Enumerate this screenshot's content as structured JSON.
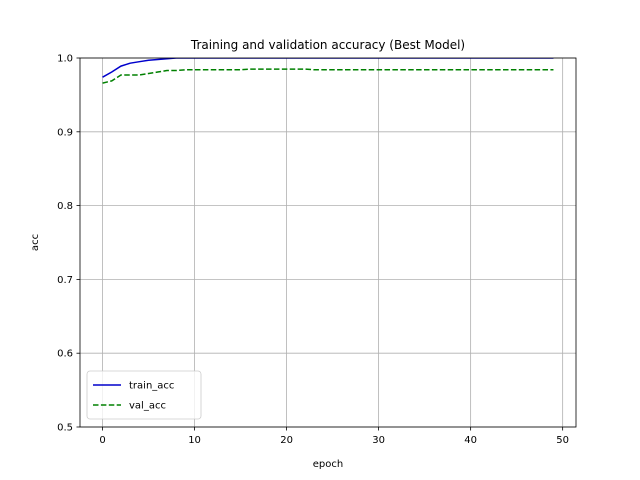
{
  "chart_data": {
    "type": "line",
    "title": "Training and validation accuracy (Best Model)",
    "xlabel": "epoch",
    "ylabel": "acc",
    "xlim": [
      -2.45,
      51.45
    ],
    "ylim": [
      0.5,
      1.0
    ],
    "xticks": [
      0,
      10,
      20,
      30,
      40,
      50
    ],
    "yticks": [
      0.5,
      0.6,
      0.7,
      0.8,
      0.9,
      1.0
    ],
    "xtick_labels": [
      "0",
      "10",
      "20",
      "30",
      "40",
      "50"
    ],
    "ytick_labels": [
      "0.5",
      "0.6",
      "0.7",
      "0.8",
      "0.9",
      "1.0"
    ],
    "grid": true,
    "legend_position": "lower-left",
    "series": [
      {
        "name": "train_acc",
        "color": "#0000cc",
        "style": "solid",
        "x": [
          0,
          1,
          2,
          3,
          4,
          5,
          6,
          7,
          8,
          9,
          10,
          11,
          12,
          13,
          14,
          15,
          16,
          17,
          18,
          19,
          20,
          21,
          22,
          23,
          24,
          25,
          26,
          27,
          28,
          29,
          30,
          31,
          32,
          33,
          34,
          35,
          36,
          37,
          38,
          39,
          40,
          41,
          42,
          43,
          44,
          45,
          46,
          47,
          48,
          49
        ],
        "y": [
          0.974,
          0.981,
          0.989,
          0.993,
          0.995,
          0.997,
          0.998,
          0.999,
          1.0,
          1.0,
          1.0,
          1.0,
          1.0,
          1.0,
          1.0,
          1.0,
          1.0,
          1.0,
          1.0,
          1.0,
          1.0,
          1.0,
          1.0,
          1.0,
          1.0,
          1.0,
          1.0,
          1.0,
          1.0,
          1.0,
          1.0,
          1.0,
          1.0,
          1.0,
          1.0,
          1.0,
          1.0,
          1.0,
          1.0,
          1.0,
          1.0,
          1.0,
          1.0,
          1.0,
          1.0,
          1.0,
          1.0,
          1.0,
          1.0,
          1.0
        ]
      },
      {
        "name": "val_acc",
        "color": "#008000",
        "style": "dashed",
        "x": [
          0,
          1,
          2,
          3,
          4,
          5,
          6,
          7,
          8,
          9,
          10,
          11,
          12,
          13,
          14,
          15,
          16,
          17,
          18,
          19,
          20,
          21,
          22,
          23,
          24,
          25,
          26,
          27,
          28,
          29,
          30,
          31,
          32,
          33,
          34,
          35,
          36,
          37,
          38,
          39,
          40,
          41,
          42,
          43,
          44,
          45,
          46,
          47,
          48,
          49
        ],
        "y": [
          0.966,
          0.969,
          0.977,
          0.977,
          0.977,
          0.979,
          0.981,
          0.983,
          0.983,
          0.984,
          0.984,
          0.984,
          0.984,
          0.984,
          0.984,
          0.984,
          0.985,
          0.985,
          0.985,
          0.985,
          0.985,
          0.985,
          0.985,
          0.984,
          0.984,
          0.984,
          0.984,
          0.984,
          0.984,
          0.984,
          0.984,
          0.984,
          0.984,
          0.984,
          0.984,
          0.984,
          0.984,
          0.984,
          0.984,
          0.984,
          0.984,
          0.984,
          0.984,
          0.984,
          0.984,
          0.984,
          0.984,
          0.984,
          0.984,
          0.984
        ]
      }
    ]
  }
}
